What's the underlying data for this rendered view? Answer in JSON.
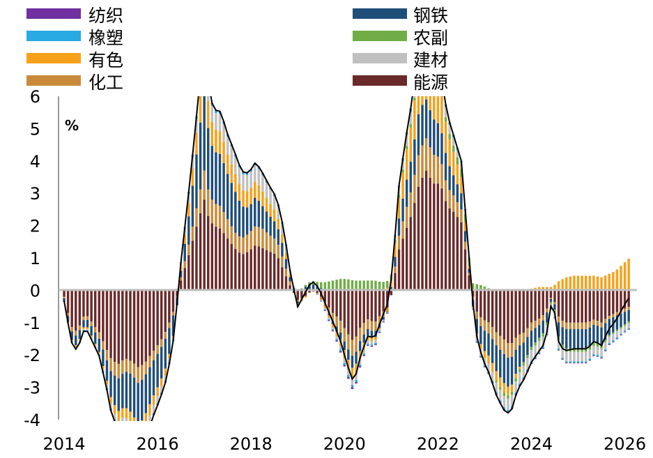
{
  "chart_data": {
    "type": "bar",
    "stacked": true,
    "unit": "%",
    "ylim": [
      -4,
      6
    ],
    "y_ticks": [
      "6",
      "5",
      "4",
      "3",
      "2",
      "1",
      "0",
      "-1",
      "-2",
      "-3",
      "-4"
    ],
    "x_ticks": [
      "2014",
      "2016",
      "2018",
      "2020",
      "2022",
      "2024",
      "2026"
    ],
    "x_tick_values": [
      2014,
      2016,
      2018,
      2020,
      2022,
      2024,
      2026
    ],
    "xlim": [
      2014,
      2026.2
    ],
    "legend_position": "top",
    "legend": [
      {
        "name": "纺织",
        "color": "#7030a0"
      },
      {
        "name": "橡塑",
        "color": "#29aae2"
      },
      {
        "name": "有色",
        "color": "#f7a11a"
      },
      {
        "name": "化工",
        "color": "#c98b3a"
      },
      {
        "name": "钢铁",
        "color": "#1f4e79"
      },
      {
        "name": "农副",
        "color": "#70ad47"
      },
      {
        "name": "建材",
        "color": "#c0c0c0"
      },
      {
        "name": "能源",
        "color": "#6b2a2a"
      }
    ],
    "total_line": {
      "color": "#000000",
      "description_key": "sum of components"
    },
    "anchors": {
      "x": [
        2014.0,
        2014.1,
        2014.2,
        2014.3,
        2014.45,
        2014.6,
        2014.75,
        2014.9,
        2015.0,
        2015.15,
        2015.3,
        2015.45,
        2015.6,
        2015.75,
        2015.9,
        2016.05,
        2016.2,
        2016.35,
        2016.5,
        2016.65,
        2016.8,
        2016.9,
        2017.0,
        2017.1,
        2017.2,
        2017.35,
        2017.5,
        2017.65,
        2017.8,
        2017.95,
        2018.1,
        2018.25,
        2018.4,
        2018.55,
        2018.7,
        2018.85,
        2019.0,
        2019.15,
        2019.3,
        2019.45,
        2019.6,
        2019.75,
        2019.9,
        2020.05,
        2020.2,
        2020.35,
        2020.5,
        2020.65,
        2020.8,
        2020.95,
        2021.05,
        2021.15,
        2021.3,
        2021.45,
        2021.6,
        2021.75,
        2021.9,
        2022.05,
        2022.2,
        2022.35,
        2022.5,
        2022.65,
        2022.8,
        2022.95,
        2023.1,
        2023.25,
        2023.4,
        2023.55,
        2023.7,
        2023.85,
        2024.0,
        2024.15,
        2024.3,
        2024.45,
        2024.6,
        2024.75,
        2024.9,
        2025.05,
        2025.2,
        2025.35,
        2025.5,
        2025.65,
        2025.8,
        2025.95,
        2026.1
      ],
      "energy": [
        -0.2,
        -0.8,
        -1.3,
        -1.2,
        -0.7,
        -1.0,
        -1.3,
        -1.8,
        -2.1,
        -2.3,
        -2.1,
        -2.2,
        -2.4,
        -2.2,
        -1.9,
        -1.6,
        -1.2,
        -0.6,
        0.3,
        1.0,
        1.8,
        2.3,
        2.8,
        2.2,
        2.0,
        1.9,
        1.6,
        1.3,
        1.1,
        1.2,
        1.4,
        1.3,
        1.2,
        1.1,
        0.6,
        0.1,
        -0.3,
        -0.2,
        0.0,
        -0.1,
        -0.4,
        -0.7,
        -0.9,
        -1.3,
        -1.6,
        -1.1,
        -0.9,
        -1.0,
        -0.7,
        -0.5,
        0.2,
        1.2,
        1.8,
        2.4,
        3.3,
        3.7,
        3.3,
        3.3,
        2.6,
        2.4,
        2.1,
        0.6,
        -0.6,
        -0.9,
        -1.0,
        -1.3,
        -1.5,
        -1.7,
        -1.4,
        -1.3,
        -1.0,
        -0.9,
        -0.7,
        -0.1,
        -0.9,
        -1.0,
        -1.0,
        -1.0,
        -1.0,
        -0.9,
        -1.0,
        -0.8,
        -0.7,
        -0.6,
        -0.5
      ],
      "chem": [
        -0.05,
        -0.1,
        -0.15,
        -0.15,
        -0.1,
        -0.15,
        -0.2,
        -0.3,
        -0.4,
        -0.45,
        -0.4,
        -0.4,
        -0.5,
        -0.4,
        -0.3,
        -0.25,
        -0.2,
        -0.1,
        0.1,
        0.3,
        0.5,
        0.7,
        0.9,
        0.8,
        0.7,
        0.7,
        0.6,
        0.5,
        0.5,
        0.55,
        0.6,
        0.6,
        0.5,
        0.45,
        0.3,
        0.1,
        -0.05,
        0.0,
        0.0,
        -0.05,
        -0.15,
        -0.25,
        -0.35,
        -0.45,
        -0.5,
        -0.4,
        -0.3,
        -0.3,
        -0.2,
        -0.1,
        0.1,
        0.4,
        0.6,
        0.8,
        1.0,
        1.0,
        0.9,
        0.8,
        0.6,
        0.5,
        0.4,
        0.1,
        -0.2,
        -0.3,
        -0.35,
        -0.4,
        -0.45,
        -0.45,
        -0.35,
        -0.3,
        -0.25,
        -0.2,
        -0.15,
        0.0,
        -0.2,
        -0.2,
        -0.2,
        -0.2,
        -0.2,
        -0.15,
        -0.15,
        -0.1,
        -0.1,
        -0.1,
        -0.1
      ],
      "steel": [
        -0.1,
        -0.2,
        -0.3,
        -0.3,
        -0.2,
        -0.3,
        -0.4,
        -0.6,
        -0.8,
        -1.0,
        -1.1,
        -1.2,
        -1.3,
        -1.2,
        -1.1,
        -1.0,
        -0.9,
        -0.6,
        0.2,
        0.8,
        1.5,
        2.0,
        2.4,
        1.8,
        1.6,
        1.6,
        1.4,
        1.3,
        1.0,
        0.8,
        0.9,
        0.7,
        0.6,
        0.5,
        0.4,
        0.1,
        -0.05,
        0.1,
        0.2,
        0.1,
        0.0,
        -0.1,
        -0.2,
        -0.3,
        -0.4,
        -0.3,
        -0.2,
        -0.2,
        -0.1,
        0.0,
        0.2,
        0.5,
        0.8,
        1.0,
        1.3,
        1.2,
        1.1,
        1.0,
        0.8,
        0.6,
        0.5,
        0.2,
        -0.4,
        -0.6,
        -0.7,
        -0.8,
        -0.9,
        -0.9,
        -0.7,
        -0.6,
        -0.5,
        -0.4,
        -0.4,
        0.0,
        -0.5,
        -0.6,
        -0.6,
        -0.6,
        -0.6,
        -0.55,
        -0.55,
        -0.5,
        -0.45,
        -0.4,
        -0.35
      ],
      "metal": [
        0.0,
        -0.05,
        -0.05,
        -0.05,
        -0.05,
        -0.05,
        -0.05,
        -0.1,
        -0.2,
        -0.3,
        -0.3,
        -0.35,
        -0.45,
        -0.4,
        -0.3,
        -0.25,
        -0.2,
        -0.05,
        0.15,
        0.4,
        0.6,
        0.8,
        1.0,
        0.8,
        0.7,
        0.7,
        0.6,
        0.55,
        0.5,
        0.5,
        0.5,
        0.45,
        0.4,
        0.35,
        0.25,
        0.05,
        -0.1,
        -0.05,
        0.0,
        0.0,
        -0.05,
        -0.1,
        -0.2,
        -0.3,
        -0.35,
        -0.25,
        -0.15,
        -0.1,
        0.0,
        0.1,
        0.3,
        0.6,
        0.9,
        1.1,
        1.4,
        1.5,
        1.3,
        1.2,
        0.9,
        0.7,
        0.5,
        0.1,
        -0.1,
        -0.2,
        -0.25,
        -0.3,
        -0.3,
        -0.25,
        -0.1,
        0.0,
        0.05,
        0.1,
        0.1,
        0.1,
        0.3,
        0.4,
        0.45,
        0.45,
        0.45,
        0.45,
        0.4,
        0.5,
        0.6,
        0.8,
        1.0
      ],
      "agri": [
        0.0,
        0.0,
        0.0,
        0.0,
        0.0,
        0.0,
        0.0,
        0.0,
        0.0,
        0.0,
        0.0,
        0.0,
        0.0,
        0.0,
        0.0,
        0.0,
        0.0,
        0.0,
        0.0,
        0.0,
        0.0,
        0.0,
        0.0,
        0.0,
        0.0,
        0.0,
        0.0,
        0.0,
        0.0,
        0.0,
        0.0,
        0.0,
        0.0,
        0.0,
        0.0,
        0.0,
        0.0,
        0.05,
        0.1,
        0.15,
        0.25,
        0.3,
        0.35,
        0.35,
        0.3,
        0.3,
        0.3,
        0.3,
        0.25,
        0.2,
        0.15,
        0.1,
        0.1,
        0.1,
        0.05,
        0.05,
        0.05,
        0.1,
        0.15,
        0.2,
        0.25,
        0.25,
        0.2,
        0.15,
        0.05,
        -0.05,
        -0.1,
        -0.1,
        -0.1,
        -0.1,
        -0.1,
        -0.1,
        -0.1,
        -0.05,
        -0.1,
        -0.1,
        -0.1,
        -0.1,
        -0.1,
        -0.1,
        -0.1,
        -0.05,
        -0.05,
        -0.05,
        -0.05
      ],
      "build": [
        0.02,
        0.0,
        -0.05,
        -0.05,
        -0.05,
        -0.05,
        -0.05,
        -0.1,
        -0.15,
        -0.2,
        -0.2,
        -0.25,
        -0.3,
        -0.3,
        -0.25,
        -0.2,
        -0.15,
        -0.05,
        0.1,
        0.25,
        0.4,
        0.5,
        0.6,
        0.5,
        0.5,
        0.55,
        0.55,
        0.55,
        0.5,
        0.5,
        0.5,
        0.5,
        0.45,
        0.4,
        0.3,
        0.1,
        0.0,
        0.0,
        0.0,
        0.0,
        -0.05,
        -0.05,
        -0.1,
        -0.15,
        -0.2,
        -0.15,
        -0.1,
        -0.1,
        -0.05,
        0.0,
        0.05,
        0.2,
        0.3,
        0.4,
        0.45,
        0.45,
        0.4,
        0.35,
        0.3,
        0.25,
        0.2,
        0.05,
        -0.1,
        -0.2,
        -0.25,
        -0.3,
        -0.35,
        -0.35,
        -0.35,
        -0.35,
        -0.35,
        -0.35,
        -0.3,
        -0.1,
        -0.3,
        -0.3,
        -0.3,
        -0.3,
        -0.3,
        -0.25,
        -0.25,
        -0.2,
        -0.2,
        -0.15,
        -0.15
      ],
      "rubber": [
        0.0,
        0.0,
        -0.02,
        -0.02,
        -0.02,
        -0.02,
        -0.03,
        -0.05,
        -0.05,
        -0.06,
        -0.06,
        -0.06,
        -0.07,
        -0.06,
        -0.05,
        -0.05,
        -0.04,
        -0.02,
        0.02,
        0.05,
        0.06,
        0.07,
        0.08,
        0.07,
        0.06,
        0.06,
        0.05,
        0.05,
        0.05,
        0.05,
        0.05,
        0.05,
        0.04,
        0.04,
        0.03,
        0.01,
        -0.01,
        0.0,
        0.0,
        -0.01,
        -0.03,
        -0.04,
        -0.05,
        -0.06,
        -0.07,
        -0.05,
        -0.04,
        -0.04,
        -0.03,
        -0.01,
        0.02,
        0.05,
        0.07,
        0.08,
        0.09,
        0.09,
        0.08,
        0.07,
        0.06,
        0.05,
        0.04,
        0.01,
        -0.03,
        -0.04,
        -0.05,
        -0.06,
        -0.06,
        -0.06,
        -0.05,
        -0.05,
        -0.05,
        -0.04,
        -0.04,
        -0.01,
        -0.04,
        -0.04,
        -0.04,
        -0.04,
        -0.04,
        -0.04,
        -0.04,
        -0.04,
        -0.04,
        -0.03,
        -0.03
      ],
      "textile": [
        0.0,
        0.0,
        0.0,
        0.0,
        0.0,
        0.0,
        0.0,
        -0.01,
        -0.02,
        -0.02,
        -0.02,
        -0.02,
        -0.03,
        -0.03,
        -0.02,
        -0.02,
        -0.02,
        -0.01,
        0.0,
        0.01,
        0.02,
        0.02,
        0.02,
        0.02,
        0.02,
        0.02,
        0.02,
        0.02,
        0.02,
        0.02,
        0.02,
        0.02,
        0.02,
        0.02,
        0.01,
        0.0,
        0.0,
        0.0,
        0.0,
        -0.01,
        -0.02,
        -0.03,
        -0.04,
        -0.05,
        -0.06,
        -0.04,
        -0.03,
        -0.03,
        -0.02,
        -0.01,
        0.0,
        0.01,
        0.02,
        0.03,
        0.03,
        0.03,
        0.03,
        0.02,
        0.02,
        0.02,
        0.01,
        0.0,
        -0.01,
        -0.02,
        -0.03,
        -0.03,
        -0.03,
        -0.03,
        -0.03,
        -0.03,
        -0.03,
        -0.02,
        -0.02,
        -0.01,
        -0.02,
        -0.02,
        -0.02,
        -0.02,
        -0.02,
        -0.02,
        -0.02,
        -0.02,
        -0.02,
        -0.02,
        -0.02
      ]
    }
  }
}
